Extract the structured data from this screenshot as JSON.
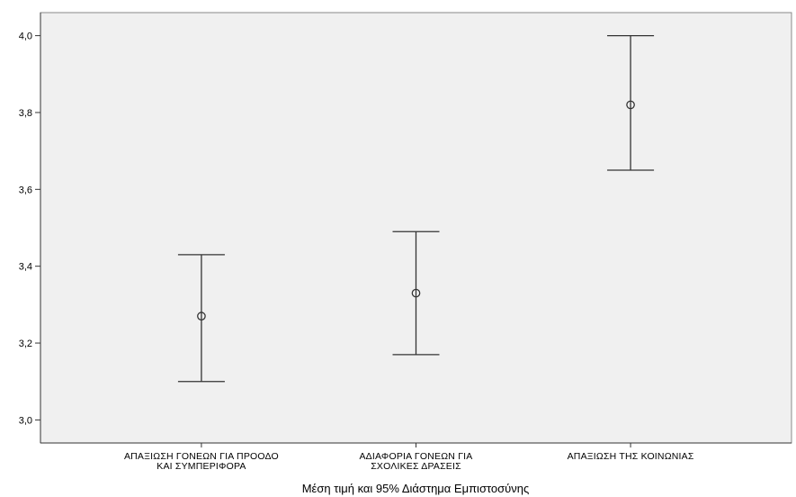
{
  "chart_data": {
    "type": "errorbar",
    "title": "",
    "xlabel": "Μέση τιμή και 95% Διάστημα Εμπιστοσύνης",
    "ylabel": "",
    "ylim": [
      2.94,
      4.06
    ],
    "yticks": [
      "3,0",
      "3,2",
      "3,4",
      "3,6",
      "3,8",
      "4,0"
    ],
    "ytick_values": [
      3.0,
      3.2,
      3.4,
      3.6,
      3.8,
      4.0
    ],
    "grid": false,
    "background": "#f0f0f0",
    "categories": [
      [
        "ΑΠΑΞΙΩΣΗ ΓΟΝΕΩΝ ΓΙΑ ΠΡΟΟΔΟ",
        "ΚΑΙ ΣΥΜΠΕΡΙΦΟΡΑ"
      ],
      [
        "ΑΔΙΑΦΟΡΙΑ ΓΟΝΕΩΝ ΓΙΑ",
        "ΣΧΟΛΙΚΕΣ ΔΡΑΣΕΙΣ"
      ],
      [
        "ΑΠΑΞΙΩΣΗ ΤΗΣ ΚΟΙΝΩΝΙΑΣ"
      ]
    ],
    "means": [
      3.27,
      3.33,
      3.82
    ],
    "lower": [
      3.1,
      3.17,
      3.65
    ],
    "upper": [
      3.43,
      3.49,
      4.0
    ]
  }
}
